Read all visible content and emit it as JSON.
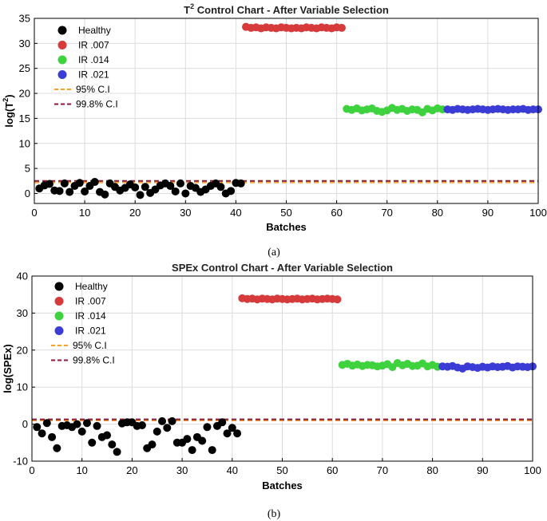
{
  "captions": [
    "(a)",
    "(b)"
  ],
  "chart_data": [
    {
      "type": "scatter",
      "title": "T² Control Chart - After Variable Selection",
      "title_main": "Control Chart - After Variable Selection",
      "title_prefix": "T",
      "title_sup": "2",
      "xlabel": "Batches",
      "ylabel": "log(T²)",
      "ylabel_main": "log(T",
      "ylabel_sup": "2",
      "ylabel_end": ")",
      "xlim": [
        0,
        100
      ],
      "ylim": [
        -2,
        35
      ],
      "xticks": [
        0,
        10,
        20,
        30,
        40,
        50,
        60,
        70,
        80,
        90,
        100
      ],
      "yticks": [
        0,
        5,
        10,
        15,
        20,
        25,
        30,
        35
      ],
      "grid": true,
      "legend_position": "top-left",
      "series": [
        {
          "name": "Healthy",
          "color": "#000000",
          "x": [
            1,
            2,
            3,
            4,
            5,
            6,
            7,
            8,
            9,
            10,
            11,
            12,
            13,
            14,
            15,
            16,
            17,
            18,
            19,
            20,
            21,
            22,
            23,
            24,
            25,
            26,
            27,
            28,
            29,
            30,
            31,
            32,
            33,
            34,
            35,
            36,
            37,
            38,
            39,
            40,
            41
          ],
          "y": [
            1.0,
            1.6,
            1.9,
            0.6,
            0.5,
            2.0,
            0.3,
            1.5,
            2.1,
            0.4,
            1.5,
            2.3,
            0.3,
            -0.2,
            2.0,
            1.3,
            0.6,
            1.1,
            1.8,
            1.2,
            -0.3,
            1.3,
            0.1,
            0.8,
            1.6,
            2.0,
            1.5,
            0.4,
            2.0,
            0.0,
            1.5,
            1.1,
            0.3,
            0.8,
            1.5,
            2.0,
            1.3,
            0.0,
            0.5,
            2.1,
            2.0
          ]
        },
        {
          "name": "IR .007",
          "color": "#d63a3a",
          "x": [
            42,
            43,
            44,
            45,
            46,
            47,
            48,
            49,
            50,
            51,
            52,
            53,
            54,
            55,
            56,
            57,
            58,
            59,
            60,
            61
          ],
          "y": [
            33.3,
            33.1,
            33.2,
            33.0,
            33.2,
            33.1,
            33.0,
            33.2,
            33.1,
            33.0,
            33.1,
            33.0,
            33.2,
            33.1,
            33.0,
            33.2,
            33.1,
            33.0,
            33.2,
            33.1
          ]
        },
        {
          "name": "IR .014",
          "color": "#3fd23f",
          "x": [
            62,
            63,
            64,
            65,
            66,
            67,
            68,
            69,
            70,
            71,
            72,
            73,
            74,
            75,
            76,
            77,
            78,
            79,
            80,
            81
          ],
          "y": [
            16.9,
            16.7,
            17.0,
            16.6,
            16.8,
            17.0,
            16.5,
            16.3,
            16.6,
            17.1,
            16.7,
            16.9,
            16.5,
            16.8,
            16.7,
            16.2,
            16.9,
            16.6,
            17.0,
            16.8
          ]
        },
        {
          "name": "IR .021",
          "color": "#3b3bd6",
          "x": [
            82,
            83,
            84,
            85,
            86,
            87,
            88,
            89,
            90,
            91,
            92,
            93,
            94,
            95,
            96,
            97,
            98,
            99,
            100
          ],
          "y": [
            16.8,
            16.7,
            16.9,
            16.8,
            16.7,
            16.8,
            16.9,
            16.8,
            16.7,
            16.8,
            16.9,
            16.8,
            16.7,
            16.8,
            16.8,
            16.9,
            16.7,
            16.8,
            16.8
          ]
        }
      ],
      "limits": [
        {
          "name": "95% C.I",
          "value": 2.2,
          "color": "#f0a13a"
        },
        {
          "name": "99.8% C.I",
          "value": 2.5,
          "color": "#8b1a3a"
        }
      ]
    },
    {
      "type": "scatter",
      "title": "SPEx Control Chart - After Variable Selection",
      "xlabel": "Batches",
      "ylabel": "log(SPEx)",
      "xlim": [
        0,
        100
      ],
      "ylim": [
        -10,
        40
      ],
      "xticks": [
        0,
        10,
        20,
        30,
        40,
        50,
        60,
        70,
        80,
        90,
        100
      ],
      "yticks": [
        -10,
        0,
        10,
        20,
        30,
        40
      ],
      "grid": true,
      "legend_position": "top-left",
      "series": [
        {
          "name": "Healthy",
          "color": "#000000",
          "x": [
            1,
            2,
            3,
            4,
            5,
            6,
            7,
            8,
            9,
            10,
            11,
            12,
            13,
            14,
            15,
            16,
            17,
            18,
            19,
            20,
            21,
            22,
            23,
            24,
            25,
            26,
            27,
            28,
            29,
            30,
            31,
            32,
            33,
            34,
            35,
            36,
            37,
            38,
            39,
            40,
            41
          ],
          "y": [
            -0.8,
            -2.5,
            0.3,
            -3.5,
            -6.5,
            -0.5,
            -0.3,
            -0.8,
            0.0,
            -2.0,
            0.3,
            -5.0,
            -0.5,
            -3.5,
            -3.0,
            -5.5,
            -7.5,
            0.2,
            0.5,
            0.5,
            -0.5,
            -0.3,
            -6.5,
            -5.5,
            -2.0,
            0.8,
            -1.0,
            0.8,
            -5.0,
            -5.0,
            -4.0,
            -7.0,
            -3.5,
            -4.5,
            -0.8,
            -7.0,
            -0.5,
            0.5,
            -2.5,
            -1.0,
            -2.5
          ]
        },
        {
          "name": "IR .007",
          "color": "#d63a3a",
          "x": [
            42,
            43,
            44,
            45,
            46,
            47,
            48,
            49,
            50,
            51,
            52,
            53,
            54,
            55,
            56,
            57,
            58,
            59,
            60,
            61
          ],
          "y": [
            34.0,
            33.8,
            33.9,
            33.7,
            33.9,
            33.8,
            33.7,
            33.9,
            33.8,
            33.7,
            33.8,
            33.9,
            33.7,
            33.8,
            33.9,
            33.7,
            33.8,
            33.9,
            33.8,
            33.7
          ]
        },
        {
          "name": "IR .014",
          "color": "#3fd23f",
          "x": [
            62,
            63,
            64,
            65,
            66,
            67,
            68,
            69,
            70,
            71,
            72,
            73,
            74,
            75,
            76,
            77,
            78,
            79,
            80,
            81
          ],
          "y": [
            16.0,
            16.3,
            15.8,
            16.1,
            15.7,
            16.0,
            15.9,
            15.6,
            15.8,
            16.2,
            15.4,
            16.5,
            15.9,
            16.3,
            15.7,
            15.8,
            16.4,
            15.6,
            16.0,
            15.5
          ]
        },
        {
          "name": "IR .021",
          "color": "#3b3bd6",
          "x": [
            82,
            83,
            84,
            85,
            86,
            87,
            88,
            89,
            90,
            91,
            92,
            93,
            94,
            95,
            96,
            97,
            98,
            99,
            100
          ],
          "y": [
            15.6,
            15.5,
            15.7,
            15.3,
            15.0,
            15.6,
            15.4,
            15.2,
            15.5,
            15.3,
            15.6,
            15.4,
            15.5,
            15.7,
            15.3,
            15.6,
            15.5,
            15.4,
            15.6
          ]
        }
      ],
      "limits": [
        {
          "name": "95% C.I",
          "value": 1.0,
          "color": "#f0a13a"
        },
        {
          "name": "99.8% C.I",
          "value": 1.3,
          "color": "#8b1a3a"
        }
      ]
    }
  ]
}
